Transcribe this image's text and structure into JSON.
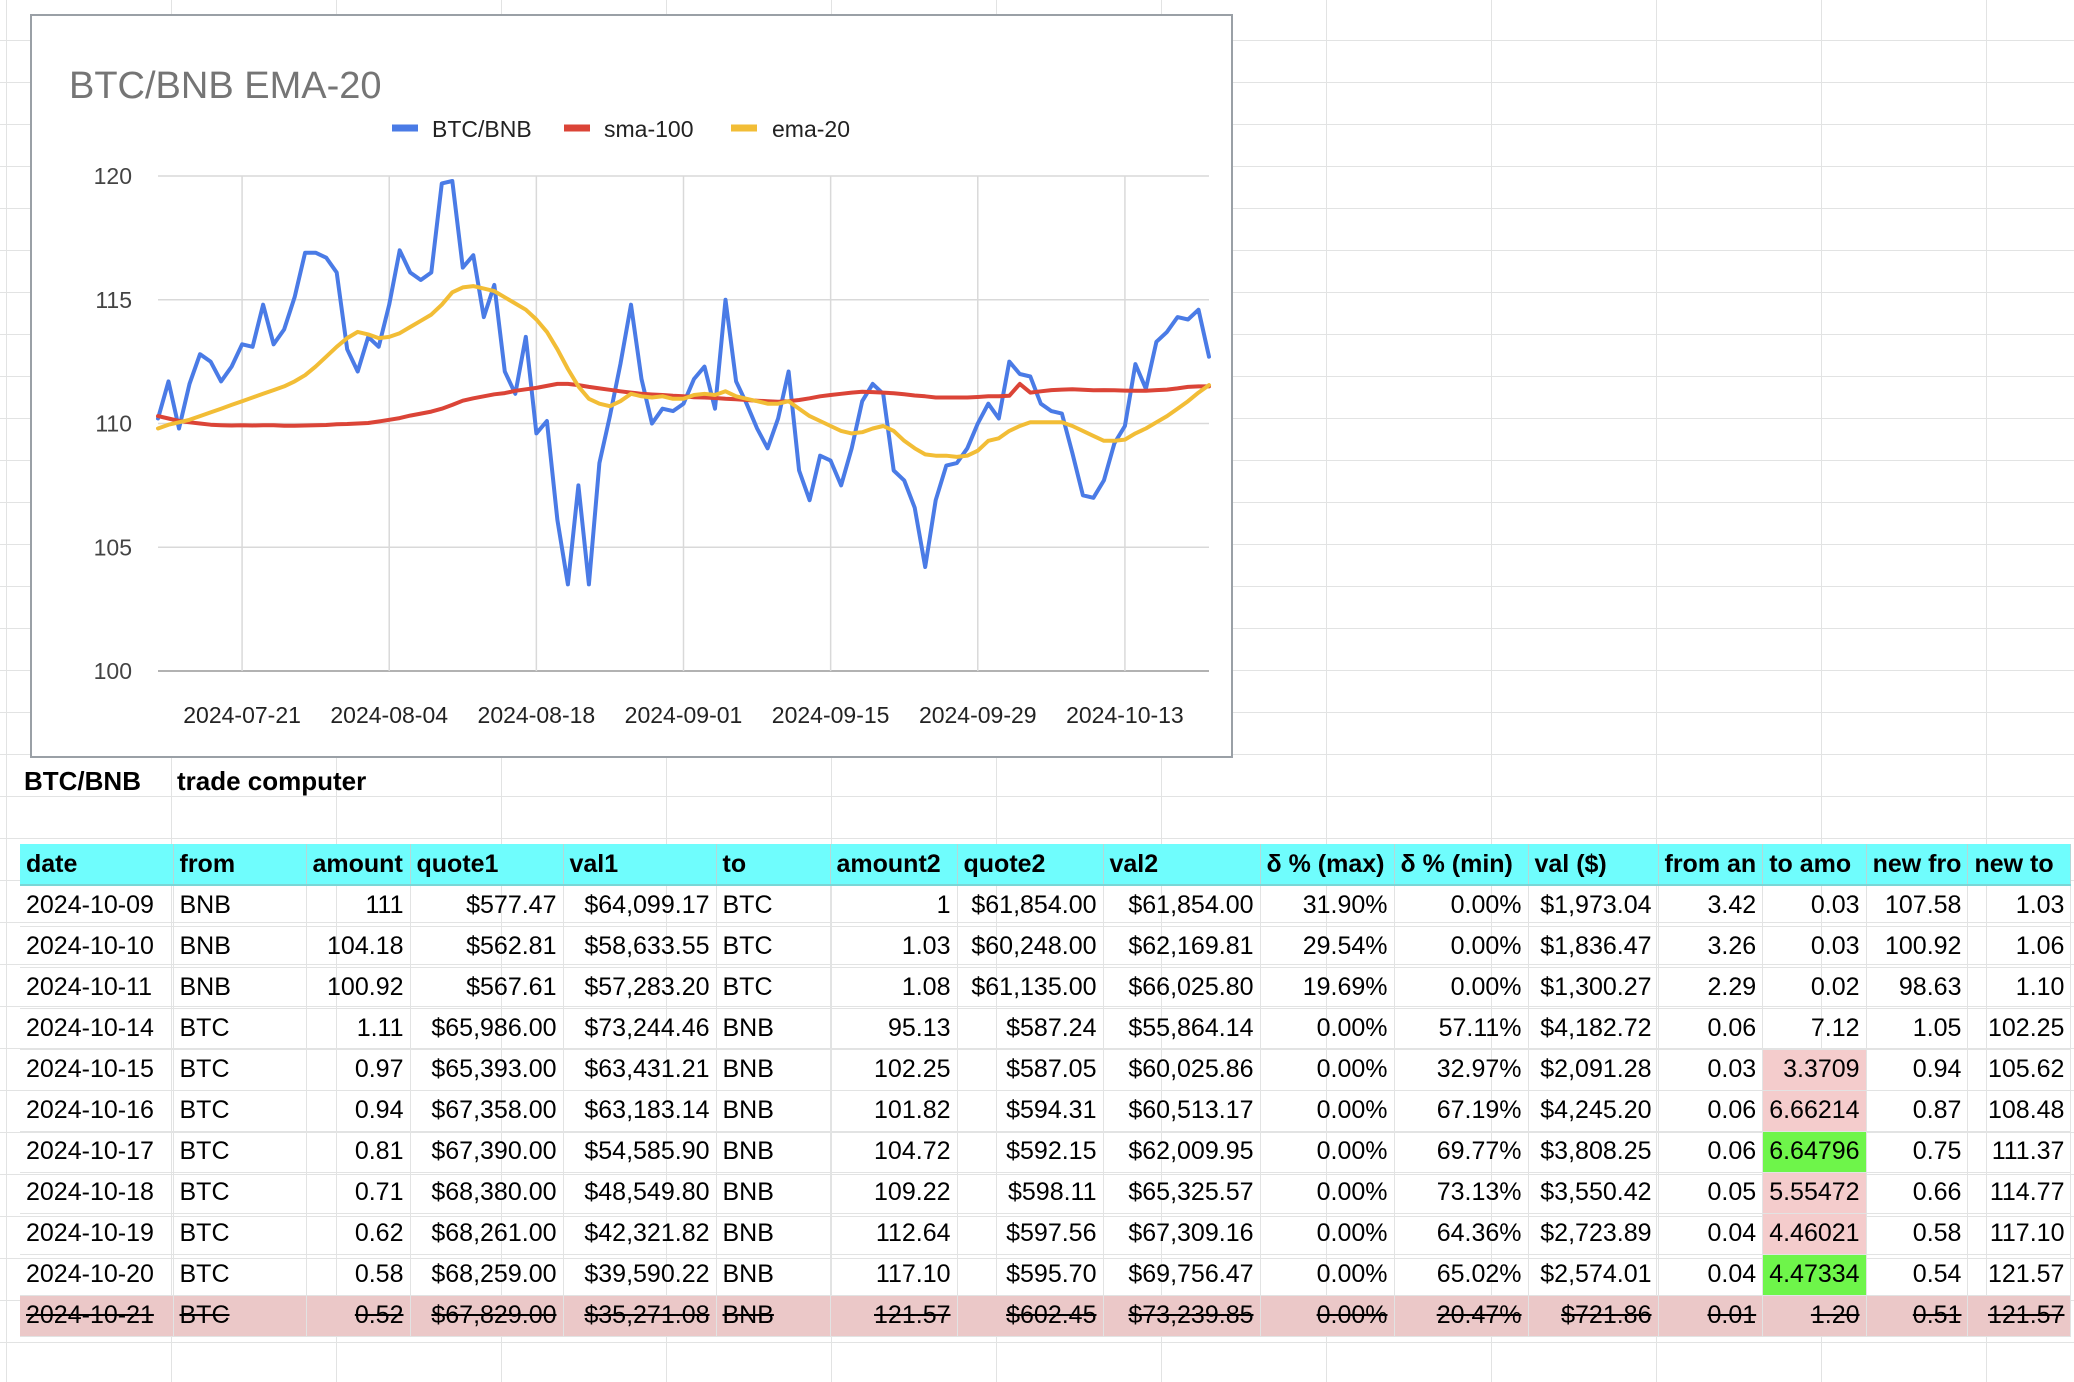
{
  "chart_data": {
    "type": "line",
    "title": "BTC/BNB EMA-20",
    "x_ticks": [
      "2024-07-21",
      "2024-08-04",
      "2024-08-18",
      "2024-09-01",
      "2024-09-15",
      "2024-09-29",
      "2024-10-13"
    ],
    "x_start": "2024-07-13",
    "x_end": "2024-10-21",
    "ylim": [
      100,
      120
    ],
    "y_ticks": [
      100,
      105,
      110,
      115,
      120
    ],
    "grid": true,
    "legend_position": "top",
    "series": [
      {
        "name": "BTC/BNB",
        "color": "#4a7be6",
        "values": [
          110.2,
          111.7,
          109.8,
          111.6,
          112.8,
          112.5,
          111.7,
          112.3,
          113.2,
          113.1,
          114.8,
          113.2,
          113.8,
          115.1,
          116.9,
          116.9,
          116.7,
          116.1,
          113.0,
          112.1,
          113.5,
          113.1,
          114.8,
          117.0,
          116.1,
          115.8,
          116.1,
          119.7,
          119.8,
          116.3,
          116.8,
          114.3,
          115.6,
          112.1,
          111.2,
          113.5,
          109.6,
          110.1,
          106.1,
          103.5,
          107.5,
          103.5,
          108.4,
          110.3,
          112.4,
          114.8,
          111.8,
          110.0,
          110.6,
          110.5,
          110.8,
          111.8,
          112.3,
          110.6,
          115.0,
          111.7,
          110.8,
          109.8,
          109.0,
          110.2,
          112.1,
          108.1,
          106.9,
          108.7,
          108.5,
          107.5,
          109.0,
          110.9,
          111.6,
          111.2,
          108.1,
          107.7,
          106.6,
          104.2,
          106.9,
          108.3,
          108.4,
          109.0,
          110.0,
          110.8,
          110.2,
          112.5,
          112.0,
          111.9,
          110.8,
          110.5,
          110.4,
          108.8,
          107.1,
          107.0,
          107.7,
          109.2,
          109.9,
          112.4,
          111.4,
          113.3,
          113.7,
          114.3,
          114.2,
          114.6,
          112.7
        ]
      },
      {
        "name": "sma-100",
        "color": "#db4437",
        "values": [
          110.3,
          110.2,
          110.1,
          110.05,
          110.0,
          109.95,
          109.93,
          109.92,
          109.93,
          109.92,
          109.93,
          109.93,
          109.91,
          109.91,
          109.92,
          109.93,
          109.94,
          109.97,
          109.98,
          110.0,
          110.02,
          110.08,
          110.15,
          110.22,
          110.32,
          110.4,
          110.48,
          110.6,
          110.75,
          110.92,
          111.02,
          111.1,
          111.18,
          111.23,
          111.32,
          111.38,
          111.44,
          111.52,
          111.6,
          111.6,
          111.55,
          111.48,
          111.42,
          111.36,
          111.3,
          111.25,
          111.2,
          111.17,
          111.15,
          111.12,
          111.1,
          111.06,
          111.05,
          111.03,
          111.0,
          110.98,
          110.95,
          110.92,
          110.9,
          110.88,
          110.9,
          110.95,
          111.02,
          111.1,
          111.15,
          111.2,
          111.25,
          111.28,
          111.27,
          111.25,
          111.22,
          111.18,
          111.13,
          111.1,
          111.05,
          111.05,
          111.05,
          111.05,
          111.07,
          111.1,
          111.1,
          111.12,
          111.6,
          111.25,
          111.3,
          111.35,
          111.37,
          111.38,
          111.36,
          111.34,
          111.35,
          111.34,
          111.33,
          111.32,
          111.32,
          111.35,
          111.37,
          111.42,
          111.48,
          111.5,
          111.5
        ]
      },
      {
        "name": "ema-20",
        "color": "#f2bd36",
        "values": [
          109.8,
          109.95,
          110.05,
          110.15,
          110.3,
          110.45,
          110.6,
          110.75,
          110.9,
          111.05,
          111.2,
          111.35,
          111.5,
          111.7,
          111.95,
          112.3,
          112.7,
          113.1,
          113.45,
          113.7,
          113.6,
          113.45,
          113.5,
          113.65,
          113.9,
          114.15,
          114.4,
          114.8,
          115.3,
          115.5,
          115.55,
          115.45,
          115.35,
          115.1,
          114.85,
          114.6,
          114.2,
          113.7,
          113.0,
          112.2,
          111.5,
          111.0,
          110.8,
          110.7,
          110.9,
          111.2,
          111.1,
          111.05,
          111.1,
          111.0,
          111.0,
          111.15,
          111.2,
          111.15,
          111.3,
          111.1,
          111.0,
          110.9,
          110.8,
          110.8,
          110.9,
          110.6,
          110.3,
          110.1,
          109.9,
          109.7,
          109.6,
          109.65,
          109.8,
          109.9,
          109.7,
          109.3,
          109.0,
          108.75,
          108.7,
          108.7,
          108.65,
          108.7,
          108.9,
          109.3,
          109.4,
          109.7,
          109.9,
          110.05,
          110.05,
          110.05,
          110.05,
          109.9,
          109.7,
          109.5,
          109.3,
          109.3,
          109.35,
          109.6,
          109.8,
          110.05,
          110.3,
          110.6,
          110.9,
          111.25,
          111.55
        ]
      }
    ]
  },
  "sheet": {
    "label_a": "BTC/BNB",
    "label_b": "trade computer"
  },
  "table": {
    "headers": [
      "date",
      "from",
      "amount",
      "quote1",
      "val1",
      "to",
      "amount2",
      "quote2",
      "val2",
      "δ % (max)",
      "δ % (min)",
      "val ($)",
      "from an",
      "to amo",
      "new fro",
      "new to"
    ],
    "rows": [
      [
        "2024-10-09",
        "BNB",
        "111",
        "$577.47",
        "$64,099.17",
        "BTC",
        "1",
        "$61,854.00",
        "$61,854.00",
        "31.90%",
        "0.00%",
        "$1,973.04",
        "3.42",
        "0.03",
        "107.58",
        "1.03"
      ],
      [
        "2024-10-10",
        "BNB",
        "104.18",
        "$562.81",
        "$58,633.55",
        "BTC",
        "1.03",
        "$60,248.00",
        "$62,169.81",
        "29.54%",
        "0.00%",
        "$1,836.47",
        "3.26",
        "0.03",
        "100.92",
        "1.06"
      ],
      [
        "2024-10-11",
        "BNB",
        "100.92",
        "$567.61",
        "$57,283.20",
        "BTC",
        "1.08",
        "$61,135.00",
        "$66,025.80",
        "19.69%",
        "0.00%",
        "$1,300.27",
        "2.29",
        "0.02",
        "98.63",
        "1.10"
      ],
      [
        "2024-10-14",
        "BTC",
        "1.11",
        "$65,986.00",
        "$73,244.46",
        "BNB",
        "95.13",
        "$587.24",
        "$55,864.14",
        "0.00%",
        "57.11%",
        "$4,182.72",
        "0.06",
        "7.12",
        "1.05",
        "102.25"
      ],
      [
        "2024-10-15",
        "BTC",
        "0.97",
        "$65,393.00",
        "$63,431.21",
        "BNB",
        "102.25",
        "$587.05",
        "$60,025.86",
        "0.00%",
        "32.97%",
        "$2,091.28",
        "0.03",
        "3.3709",
        "0.94",
        "105.62"
      ],
      [
        "2024-10-16",
        "BTC",
        "0.94",
        "$67,358.00",
        "$63,183.14",
        "BNB",
        "101.82",
        "$594.31",
        "$60,513.17",
        "0.00%",
        "67.19%",
        "$4,245.20",
        "0.06",
        "6.66214",
        "0.87",
        "108.48"
      ],
      [
        "2024-10-17",
        "BTC",
        "0.81",
        "$67,390.00",
        "$54,585.90",
        "BNB",
        "104.72",
        "$592.15",
        "$62,009.95",
        "0.00%",
        "69.77%",
        "$3,808.25",
        "0.06",
        "6.64796",
        "0.75",
        "111.37"
      ],
      [
        "2024-10-18",
        "BTC",
        "0.71",
        "$68,380.00",
        "$48,549.80",
        "BNB",
        "109.22",
        "$598.11",
        "$65,325.57",
        "0.00%",
        "73.13%",
        "$3,550.42",
        "0.05",
        "5.55472",
        "0.66",
        "114.77"
      ],
      [
        "2024-10-19",
        "BTC",
        "0.62",
        "$68,261.00",
        "$42,321.82",
        "BNB",
        "112.64",
        "$597.56",
        "$67,309.16",
        "0.00%",
        "64.36%",
        "$2,723.89",
        "0.04",
        "4.46021",
        "0.58",
        "117.10"
      ],
      [
        "2024-10-20",
        "BTC",
        "0.58",
        "$68,259.00",
        "$39,590.22",
        "BNB",
        "117.10",
        "$595.70",
        "$69,756.47",
        "0.00%",
        "65.02%",
        "$2,574.01",
        "0.04",
        "4.47334",
        "0.54",
        "121.57"
      ],
      [
        "2024-10-21",
        "BTC",
        "0.52",
        "$67,829.00",
        "$35,271.08",
        "BNB",
        "121.57",
        "$602.45",
        "$73,239.85",
        "0.00%",
        "20.47%",
        "$721.86",
        "0.01",
        "1.20",
        "0.51",
        "121.57"
      ]
    ],
    "cell_highlights": {
      "4": "pink",
      "5": "pink",
      "6": "green",
      "7": "pink",
      "8": "pink",
      "9": "green"
    },
    "highlight_color_pink": "#f4cccc",
    "highlight_color_green": "#6ef54a",
    "struck_row_index": 10,
    "header_color": "#6ffdfd"
  }
}
